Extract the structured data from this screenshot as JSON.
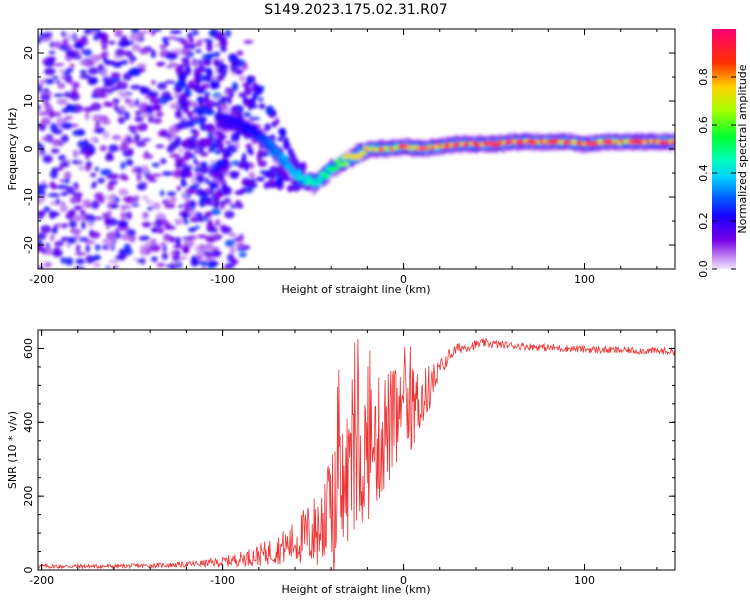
{
  "title": "S149.2023.175.02.31.R07",
  "chart_data": [
    {
      "type": "heatmap",
      "xlabel": "Height of straight line (km)",
      "ylabel": "Frequency (Hz)",
      "xlim": [
        -202,
        150
      ],
      "ylim": [
        -25,
        25
      ],
      "xticks": [
        -200,
        -100,
        0,
        100
      ],
      "yticks": [
        -20,
        -10,
        0,
        10,
        20
      ],
      "colorbar": {
        "label": "Normalized spectral amplitude",
        "range": [
          0,
          1
        ],
        "ticks": [
          "0.0",
          "0.2",
          "0.4",
          "0.6",
          "0.8"
        ],
        "colors": [
          "#e9d4f6",
          "#7700e8",
          "#0000ff",
          "#00c8ff",
          "#00ff66",
          "#a6ff00",
          "#ffd000",
          "#ff2a00",
          "#ff0077"
        ]
      },
      "ridge": {
        "description": "spectral peak frequency vs height",
        "x": [
          -100,
          -90,
          -80,
          -75,
          -70,
          -65,
          -60,
          -55,
          -50,
          -45,
          -40,
          -35,
          -30,
          -25,
          -20,
          -10,
          0,
          10,
          20,
          30,
          40,
          50,
          60,
          70,
          80,
          90,
          100,
          110,
          120,
          130,
          140,
          150
        ],
        "y": [
          6,
          5,
          3,
          1,
          -1,
          -3,
          -5,
          -6.5,
          -7,
          -6,
          -4,
          -3,
          -2,
          -1,
          0,
          0,
          0.5,
          0,
          0.5,
          1,
          1,
          1,
          1.5,
          1.5,
          1.5,
          1.5,
          1,
          1.5,
          1.5,
          1.5,
          1.5,
          1.5
        ],
        "amplitude": [
          0.2,
          0.22,
          0.25,
          0.3,
          0.35,
          0.38,
          0.4,
          0.45,
          0.5,
          0.5,
          0.55,
          0.65,
          0.8,
          0.8,
          0.85,
          0.9,
          0.92,
          0.92,
          0.95,
          0.95,
          0.97,
          0.97,
          0.97,
          0.97,
          0.97,
          0.97,
          0.97,
          0.97,
          0.97,
          0.97,
          0.97,
          0.97
        ]
      },
      "noise_region": {
        "x_range": [
          -202,
          -100
        ],
        "y_range": [
          -25,
          25
        ],
        "amplitude_range": [
          0.05,
          0.25
        ]
      }
    },
    {
      "type": "line",
      "xlabel": "Height of straight line (km)",
      "ylabel": "SNR (10 * v/v)",
      "xlim": [
        -202,
        150
      ],
      "ylim": [
        0,
        650
      ],
      "xticks": [
        -200,
        -100,
        0,
        100
      ],
      "yticks": [
        0,
        200,
        400,
        600
      ],
      "color": "#ee3333",
      "series": [
        {
          "name": "SNR",
          "x": [
            -202,
            -180,
            -160,
            -140,
            -120,
            -110,
            -100,
            -90,
            -80,
            -70,
            -60,
            -55,
            -50,
            -45,
            -40,
            -35,
            -30,
            -25,
            -20,
            -15,
            -10,
            -5,
            0,
            5,
            10,
            15,
            20,
            25,
            30,
            35,
            40,
            45,
            50,
            60,
            70,
            80,
            90,
            100,
            110,
            120,
            130,
            140,
            150
          ],
          "y": [
            10,
            10,
            10,
            12,
            15,
            18,
            22,
            30,
            40,
            55,
            75,
            90,
            100,
            120,
            150,
            200,
            260,
            300,
            320,
            340,
            380,
            400,
            420,
            440,
            460,
            500,
            540,
            580,
            600,
            605,
            610,
            615,
            612,
            608,
            605,
            602,
            600,
            598,
            596,
            595,
            594,
            593,
            592
          ],
          "noise_amplitude": [
            6,
            6,
            6,
            6,
            8,
            10,
            14,
            20,
            30,
            40,
            60,
            80,
            100,
            130,
            160,
            200,
            210,
            200,
            190,
            180,
            170,
            150,
            130,
            110,
            90,
            60,
            30,
            20,
            15,
            14,
            13,
            12,
            11,
            10,
            10,
            10,
            10,
            10,
            10,
            10,
            10,
            10,
            10
          ]
        }
      ]
    }
  ]
}
